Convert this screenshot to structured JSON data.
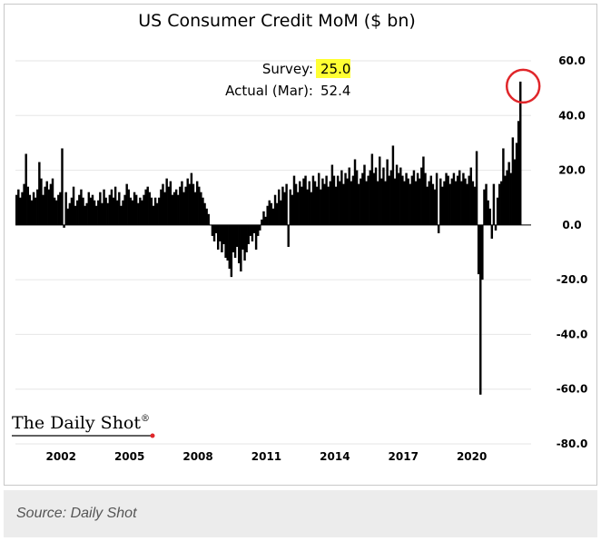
{
  "caption": "Source: Daily Shot",
  "logo": "The Daily Shot",
  "logo_mark": "®",
  "colors": {
    "bars": "#000000",
    "grid": "#e6e6e6",
    "highlight": "#ffff33",
    "circle": "#e0262a",
    "logo_dot": "#e0262a"
  },
  "chart_data": {
    "type": "bar",
    "title": "US Consumer Credit MoM ($ bn)",
    "xlabel": "",
    "ylabel": "",
    "ylim": [
      -80,
      60
    ],
    "xlim": [
      2000.0,
      2022.6
    ],
    "yticks": [
      -80,
      -60,
      -40,
      -20,
      0,
      20,
      40,
      60
    ],
    "ytick_labels": [
      "-80.0",
      "-60.0",
      "-40.0",
      "-20.0",
      "0.0",
      "20.0",
      "40.0",
      "60.0"
    ],
    "xticks": [
      2002,
      2005,
      2008,
      2011,
      2014,
      2017,
      2020
    ],
    "xtick_labels": [
      "2002",
      "2005",
      "2008",
      "2011",
      "2014",
      "2017",
      "2020"
    ],
    "grid": true,
    "annotations": {
      "survey_label": "Survey:",
      "survey_value": "25.0",
      "actual_label": "Actual (Mar):",
      "actual_value": "52.4",
      "circled_point": {
        "x": 2022.17,
        "y": 52.4
      }
    },
    "series": [
      {
        "name": "2000",
        "x0": 2000.0,
        "values": [
          11,
          13,
          10,
          12,
          15,
          26,
          14,
          11,
          9,
          12,
          10,
          13
        ]
      },
      {
        "name": "2001",
        "x0": 2001.0,
        "values": [
          23,
          17,
          11,
          14,
          16,
          13,
          15,
          17,
          10,
          9,
          11,
          12
        ]
      },
      {
        "name": "2002",
        "x0": 2002.0,
        "values": [
          28,
          -1,
          12,
          6,
          8,
          10,
          14,
          7,
          9,
          11,
          13,
          10
        ]
      },
      {
        "name": "2003",
        "x0": 2003.0,
        "values": [
          7,
          8,
          12,
          10,
          11,
          9,
          7,
          9,
          12,
          8,
          13,
          10
        ]
      },
      {
        "name": "2004",
        "x0": 2004.0,
        "values": [
          8,
          11,
          13,
          10,
          14,
          9,
          12,
          7,
          9,
          11,
          15,
          13
        ]
      },
      {
        "name": "2005",
        "x0": 2005.0,
        "values": [
          10,
          9,
          12,
          11,
          8,
          10,
          9,
          11,
          13,
          14,
          12,
          10
        ]
      },
      {
        "name": "2006",
        "x0": 2006.0,
        "values": [
          7,
          10,
          8,
          10,
          13,
          15,
          12,
          17,
          14,
          16,
          11,
          12
        ]
      },
      {
        "name": "2007",
        "x0": 2007.0,
        "values": [
          13,
          11,
          14,
          16,
          12,
          14,
          17,
          15,
          19,
          15,
          12,
          16
        ]
      },
      {
        "name": "2008",
        "x0": 2008.0,
        "values": [
          14,
          12,
          10,
          8,
          6,
          4,
          0,
          -4,
          -6,
          -3,
          -9,
          -6
        ]
      },
      {
        "name": "2009",
        "x0": 2009.0,
        "values": [
          -10,
          -7,
          -12,
          -13,
          -16,
          -19,
          -10,
          -12,
          -8,
          -14,
          -17,
          -9
        ]
      },
      {
        "name": "2010",
        "x0": 2010.0,
        "values": [
          -13,
          -10,
          -7,
          -4,
          -6,
          -3,
          -9,
          -4,
          -2,
          2,
          5,
          3
        ]
      },
      {
        "name": "2011",
        "x0": 2011.0,
        "values": [
          7,
          9,
          8,
          6,
          11,
          8,
          13,
          9,
          14,
          12,
          15,
          -8
        ]
      },
      {
        "name": "2012",
        "x0": 2012.0,
        "values": [
          13,
          11,
          18,
          15,
          12,
          16,
          14,
          17,
          18,
          13,
          16,
          12
        ]
      },
      {
        "name": "2013",
        "x0": 2013.0,
        "values": [
          18,
          16,
          14,
          19,
          13,
          17,
          15,
          18,
          14,
          16,
          22,
          18
        ]
      },
      {
        "name": "2014",
        "x0": 2014.0,
        "values": [
          14,
          18,
          16,
          20,
          15,
          19,
          17,
          21,
          16,
          18,
          24,
          20
        ]
      },
      {
        "name": "2015",
        "x0": 2015.0,
        "values": [
          15,
          17,
          19,
          22,
          16,
          18,
          20,
          26,
          19,
          21,
          16,
          25
        ]
      },
      {
        "name": "2016",
        "x0": 2016.0,
        "values": [
          17,
          21,
          16,
          24,
          18,
          20,
          29,
          17,
          22,
          19,
          21,
          18
        ]
      },
      {
        "name": "2017",
        "x0": 2017.0,
        "values": [
          16,
          19,
          17,
          15,
          18,
          20,
          16,
          19,
          17,
          21,
          25,
          19
        ]
      },
      {
        "name": "2018",
        "x0": 2018.0,
        "values": [
          14,
          16,
          18,
          15,
          13,
          19,
          -3,
          17,
          14,
          16,
          19,
          18
        ]
      },
      {
        "name": "2019",
        "x0": 2019.0,
        "values": [
          15,
          17,
          19,
          16,
          18,
          20,
          16,
          19,
          17,
          15,
          18,
          21
        ]
      },
      {
        "name": "2020",
        "x0": 2020.0,
        "values": [
          16,
          14,
          27,
          -18,
          -62,
          -20,
          13,
          15,
          9,
          6,
          -5,
          15
        ]
      },
      {
        "name": "2021",
        "x0": 2021.0,
        "values": [
          -2,
          10,
          15,
          16,
          28,
          18,
          20,
          23,
          19,
          32,
          24,
          30
        ]
      },
      {
        "name": "2022",
        "x0": 2022.0,
        "values": [
          38,
          52.4
        ]
      }
    ]
  }
}
